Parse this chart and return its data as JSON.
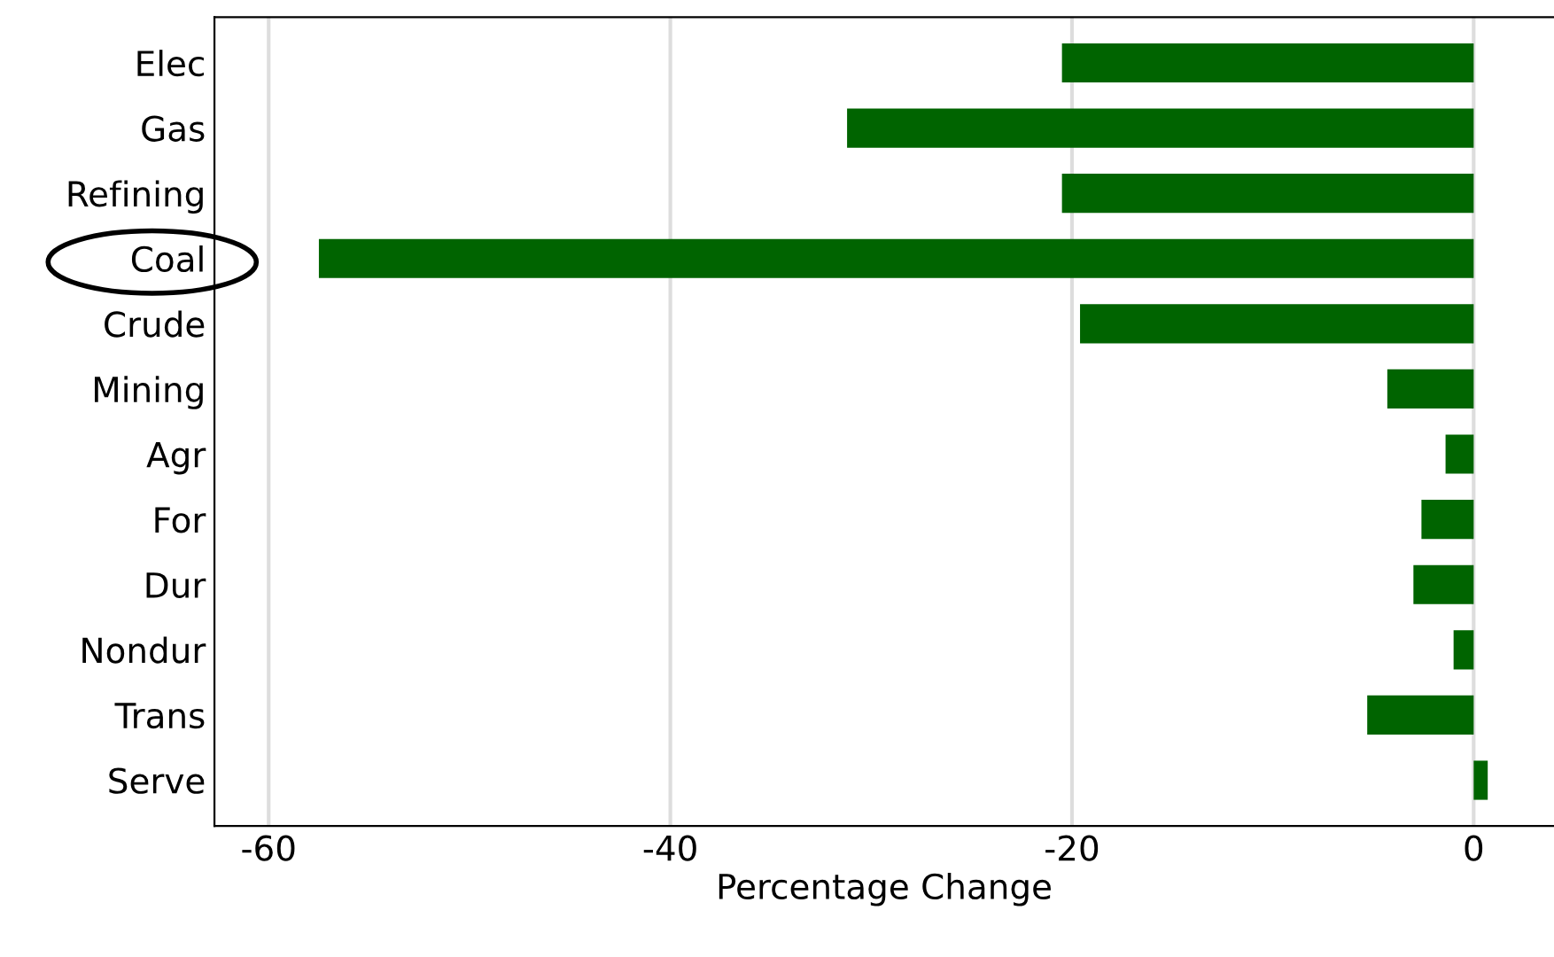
{
  "chart_data": {
    "type": "bar",
    "orientation": "horizontal",
    "xlabel": "Percentage Change",
    "categories": [
      "Elec",
      "Gas",
      "Refining",
      "Coal",
      "Crude",
      "Mining",
      "Agr",
      "For",
      "Dur",
      "Nondur",
      "Trans",
      "Serve"
    ],
    "values": [
      -20.5,
      -31.2,
      -20.5,
      -57.5,
      -19.6,
      -4.3,
      -1.4,
      -2.6,
      -3.0,
      -1.0,
      -5.3,
      0.7
    ],
    "color": "#006400",
    "xlim": [
      -62.7,
      4
    ],
    "xticks": [
      {
        "value": -60,
        "label": "-60"
      },
      {
        "value": -40,
        "label": "-40"
      },
      {
        "value": -20,
        "label": "-20"
      },
      0
    ],
    "grid": "x"
  }
}
